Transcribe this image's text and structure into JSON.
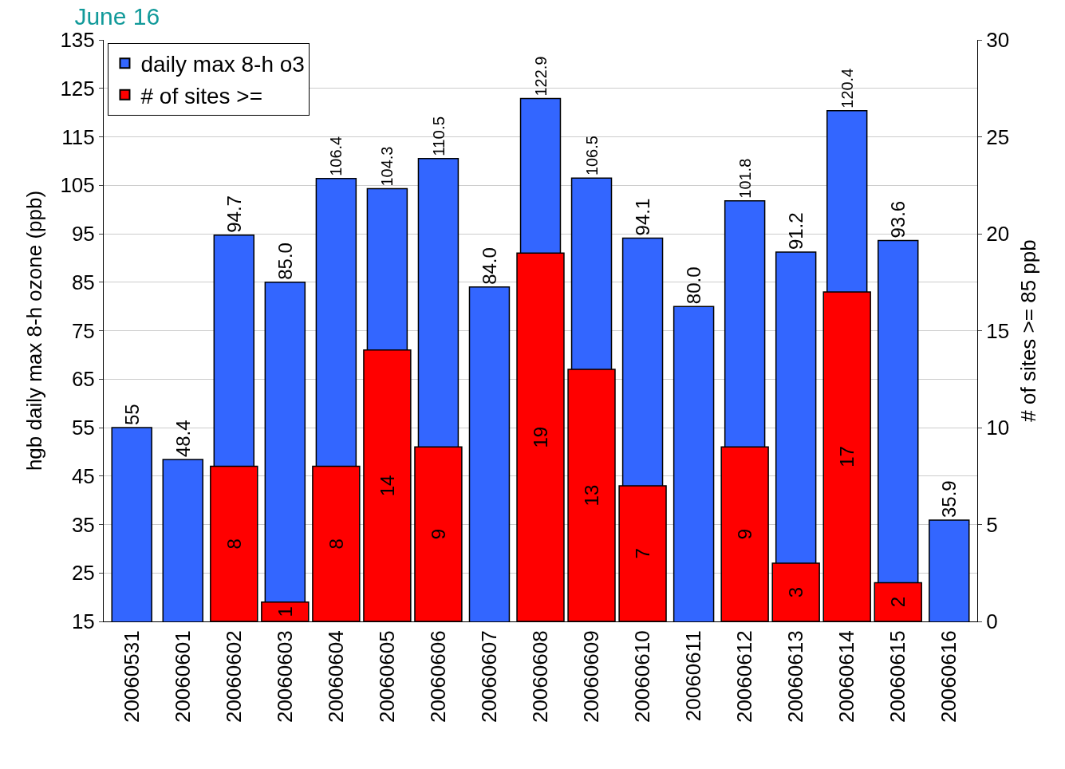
{
  "chart_data": {
    "type": "bar",
    "title": "June 16",
    "ylabel": "hgb daily max 8-h ozone (ppb)",
    "y2label": "# of sites >= 85 ppb",
    "categories": [
      "20060531",
      "20060601",
      "20060602",
      "20060603",
      "20060604",
      "20060605",
      "20060606",
      "20060607",
      "20060608",
      "20060609",
      "20060610",
      "20060611",
      "20060612",
      "20060613",
      "20060614",
      "20060615",
      "20060616"
    ],
    "series": [
      {
        "name": "daily max 8-h o3",
        "color": "#3366ff",
        "values": [
          55,
          48.4,
          94.7,
          85.0,
          106.4,
          104.3,
          110.5,
          84.0,
          122.9,
          106.5,
          94.1,
          80.0,
          101.8,
          91.2,
          120.4,
          93.6,
          35.9
        ],
        "value_labels": [
          "55",
          "48.4",
          "94.7",
          "85.0",
          "106.4",
          "104.3",
          "110.5",
          "84.0",
          "122.9",
          "106.5",
          "94.1",
          "80.0",
          "101.8",
          "91.2",
          "120.4",
          "93.6",
          "35.9"
        ]
      },
      {
        "name": "# of sites >=",
        "color": "#ff0000",
        "axis": "y2",
        "values": [
          null,
          null,
          8,
          1,
          8,
          14,
          9,
          null,
          19,
          13,
          7,
          null,
          9,
          3,
          17,
          2,
          null
        ]
      }
    ],
    "data_labels": true,
    "ylim": [
      15,
      135
    ],
    "yticks": [
      15,
      25,
      35,
      45,
      55,
      65,
      75,
      85,
      95,
      105,
      115,
      125,
      135
    ],
    "y2lim": [
      0,
      30
    ],
    "y2ticks": [
      0,
      5,
      10,
      15,
      20,
      25,
      30
    ],
    "grid": "y",
    "legend": "top left"
  }
}
